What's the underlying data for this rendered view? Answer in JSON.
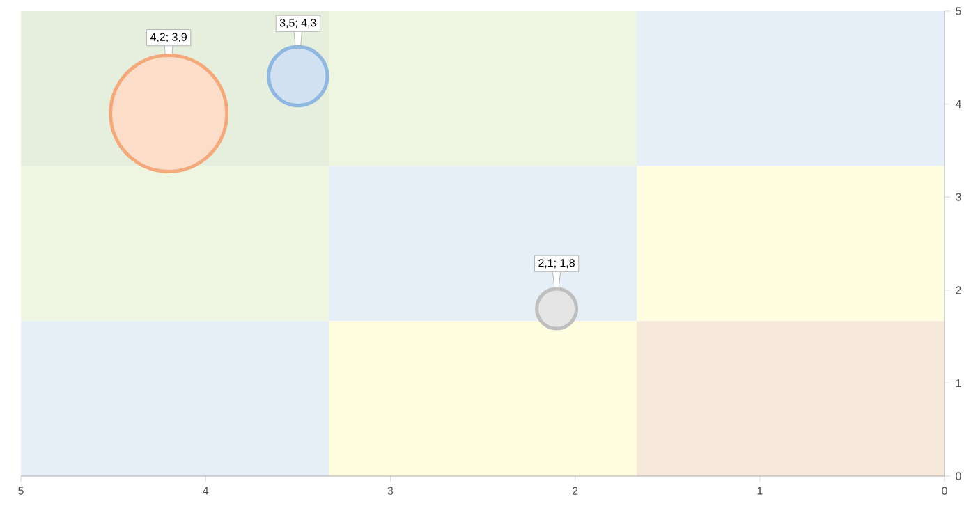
{
  "chart_data": {
    "type": "bubble",
    "series": [
      {
        "color": "#f4a97b",
        "x": [
          4.2
        ],
        "values": [
          3.9
        ],
        "sizes": [
          1
        ],
        "value_labels": [
          "4,2; 3,9"
        ]
      },
      {
        "color": "#8fb7e0",
        "x": [
          3.5
        ],
        "values": [
          4.3
        ],
        "sizes": [
          0.27
        ],
        "value_labels": [
          "3,5; 4,3"
        ]
      },
      {
        "color": "#bfbfbf",
        "x": [
          2.1
        ],
        "values": [
          1.8
        ],
        "sizes": [
          0.13
        ],
        "value_labels": [
          "2,1; 1,8"
        ]
      }
    ],
    "xlim": [
      5,
      0
    ],
    "ylim": [
      0,
      5
    ],
    "xticks": [
      5,
      4,
      3,
      2,
      1,
      0
    ],
    "yticks": [
      0,
      1,
      2,
      3,
      4,
      5
    ],
    "grid": false
  }
}
